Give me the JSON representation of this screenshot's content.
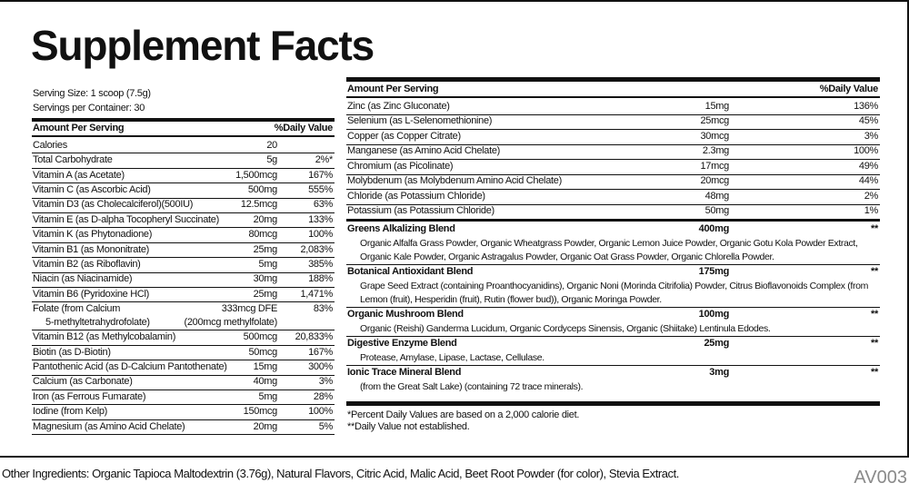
{
  "header": {
    "title": "Supplement Facts"
  },
  "left": {
    "serving_size": "Serving Size: 1 scoop (7.5g)",
    "servings": "Servings per Container: 30",
    "columns": [
      "Amount Per Serving",
      "%Daily Value"
    ],
    "rows": [
      {
        "name": "Calories",
        "amount": "20"
      },
      {
        "name": "Total Carbohydrate",
        "amount": "5g",
        "dv": "2%*"
      },
      {
        "name": "Vitamin A (as Acetate)",
        "amount": "1,500mcg",
        "dv": "167%"
      },
      {
        "name": "Vitamin C (as Ascorbic Acid)",
        "amount": "500mg",
        "dv": "555%"
      },
      {
        "name": "Vitamin D3 (as Cholecalciferol)(500IU)",
        "amount": "12.5mcg",
        "dv": "63%"
      },
      {
        "name": "Vitamin E (as D-alpha Tocopheryl Succinate)",
        "amount": "20mg",
        "dv": "133%"
      },
      {
        "name": "Vitamin K (as Phytonadione)",
        "amount": "80mcg",
        "dv": "100%"
      },
      {
        "name": "Vitamin B1 (as Mononitrate)",
        "amount": "25mg",
        "dv": "2,083%"
      },
      {
        "name": "Vitamin B2 (as Riboflavin)",
        "amount": "5mg",
        "dv": "385%"
      },
      {
        "name": "Niacin (as Niacinamide)",
        "amount": "30mg",
        "dv": "188%"
      },
      {
        "name": "Vitamin B6 (Pyridoxine HCl)",
        "amount": "25mg",
        "dv": "1,471%"
      },
      {
        "name": [
          "Folate (from Calcium",
          "5-methyltetrahydrofolate)"
        ],
        "amount": [
          "333mcg DFE",
          "(200mcg methylfolate)"
        ],
        "dv": "83%"
      },
      {
        "name": "Vitamin B12 (as Methylcobalamin)",
        "amount": "500mcg",
        "dv": "20,833%"
      },
      {
        "name": "Biotin (as D-Biotin)",
        "amount": "50mcg",
        "dv": "167%"
      },
      {
        "name": "Pantothenic Acid (as D-Calcium Pantothenate)",
        "amount": "15mg",
        "dv": "300%"
      },
      {
        "name": "Calcium (as Carbonate)",
        "amount": "40mg",
        "dv": "3%"
      },
      {
        "name": "Iron (as Ferrous Fumarate)",
        "amount": "5mg",
        "dv": "28%"
      },
      {
        "name": "Iodine (from Kelp)",
        "amount": "150mcg",
        "dv": "100%"
      },
      {
        "name": "Magnesium (as Amino Acid Chelate)",
        "amount": "20mg",
        "dv": "5%"
      }
    ]
  },
  "right": {
    "columns": [
      "Amount Per Serving",
      "%Daily Value"
    ],
    "rows": [
      {
        "name": "Zinc (as Zinc Gluconate)",
        "amount": "15mg",
        "dv": "136%"
      },
      {
        "name": "Selenium (as L-Selenomethionine)",
        "amount": "25mcg",
        "dv": "45%"
      },
      {
        "name": "Copper (as Copper Citrate)",
        "amount": "30mcg",
        "dv": "3%"
      },
      {
        "name": "Manganese (as Amino Acid Chelate)",
        "amount": "2.3mg",
        "dv": "100%"
      },
      {
        "name": "Chromium (as Picolinate)",
        "amount": "17mcg",
        "dv": "49%"
      },
      {
        "name": "Molybdenum (as Molybdenum Amino Acid Chelate)",
        "amount": "20mcg",
        "dv": "44%"
      },
      {
        "name": "Chloride (as Potassium Chloride)",
        "amount": "48mg",
        "dv": "2%"
      },
      {
        "name": "Potassium (as Potassium Chloride)",
        "amount": "50mg",
        "dv": "1%"
      }
    ],
    "blends": [
      {
        "name": "Greens Alkalizing Blend",
        "amount": "400mg",
        "dv": "**",
        "description": [
          "Organic Alfalfa Grass Powder, Organic Wheatgrass Powder, Organic Lemon Juice Powder, Organic Gotu Kola Powder Extract,",
          "Organic Kale Powder, Organic Astragalus Powder, Organic Oat Grass Powder, Organic Chlorella Powder."
        ]
      },
      {
        "name": "Botanical Antioxidant Blend",
        "amount": "175mg",
        "dv": "**",
        "description": [
          "Grape Seed Extract (containing Proanthocyanidins), Organic Noni (Morinda Citrifolia) Powder, Citrus Bioflavonoids Complex (from",
          "Lemon (fruit), Hesperidin (fruit), Rutin (flower bud)), Organic Moringa Powder."
        ]
      },
      {
        "name": "Organic Mushroom Blend",
        "amount": "100mg",
        "dv": "**",
        "description": [
          "Organic (Reishi) Ganderma Lucidum, Organic Cordyceps Sinensis, Organic (Shiitake) Lentinula Edodes."
        ]
      },
      {
        "name": "Digestive Enzyme Blend",
        "amount": "25mg",
        "dv": "**",
        "description": [
          "Protease, Amylase, Lipase, Lactase, Cellulase."
        ]
      },
      {
        "name": "Ionic Trace Mineral Blend",
        "amount": "3mg",
        "dv": "**",
        "description": [
          "(from the Great Salt Lake) (containing 72 trace minerals)."
        ]
      }
    ],
    "footnotes": [
      "*Percent Daily Values are based on a 2,000 calorie diet.",
      "**Daily Value not established."
    ]
  },
  "footer": {
    "other_ingredients": "Other Ingredients: Organic Tapioca Maltodextrin (3.76g), Natural Flavors, Citric Acid, Malic Acid, Beet Root Powder (for color), Stevia Extract.",
    "code": "AV003"
  }
}
